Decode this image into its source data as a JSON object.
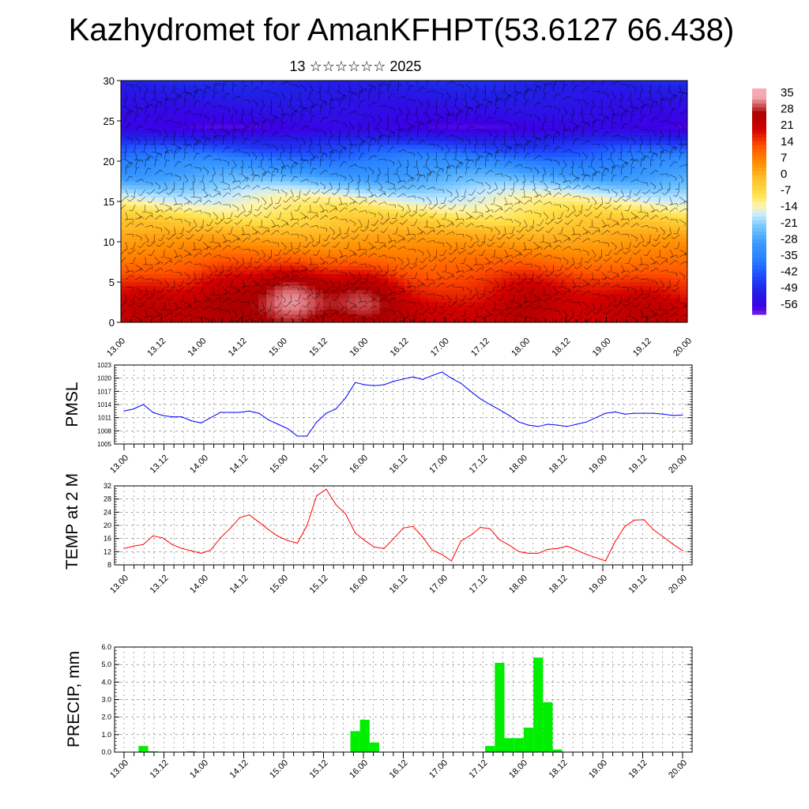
{
  "title": "Kazhydromet for AmanKFHPT(53.6127 66.438)",
  "subtitle": "13 ☆☆☆☆☆☆ 2025",
  "time_labels": [
    "13.00",
    "13.12",
    "14.00",
    "14.12",
    "15.00",
    "15.12",
    "16.00",
    "16.12",
    "17.00",
    "17.12",
    "18.00",
    "18.12",
    "19.00",
    "19.12",
    "20.00"
  ],
  "chart_data": [
    {
      "type": "heatmap",
      "title": "",
      "ylabel": "",
      "ylim": [
        0,
        30
      ],
      "yticks": [
        "0",
        "5",
        "10",
        "15",
        "20",
        "25",
        "30"
      ],
      "colorbar": {
        "labels": [
          "35",
          "28",
          "21",
          "14",
          "7",
          "0",
          "-7",
          "-14",
          "-21",
          "-28",
          "-35",
          "-42",
          "-49",
          "-56"
        ],
        "colors": {
          "hot": "#d40000",
          "warm": "#ff8a00",
          "mild": "#ffe14a",
          "cool": "#c8eaff",
          "cold": "#3b9cff",
          "frigid": "#2020e6",
          "top": "#8a2be2"
        }
      },
      "profile": [
        {
          "height": 0,
          "value": 22
        },
        {
          "height": 2,
          "value": 21
        },
        {
          "height": 5,
          "value": 16
        },
        {
          "height": 8,
          "value": 9
        },
        {
          "height": 11,
          "value": 2
        },
        {
          "height": 14,
          "value": -9
        },
        {
          "height": 16,
          "value": -16
        },
        {
          "height": 18,
          "value": -26
        },
        {
          "height": 20,
          "value": -34
        },
        {
          "height": 22,
          "value": -45
        },
        {
          "height": 24,
          "value": -56
        },
        {
          "height": 27,
          "value": -52
        },
        {
          "height": 30,
          "value": -48
        }
      ],
      "warm_cores": [
        {
          "t": 1.3,
          "h": 3.5,
          "dv": 8
        },
        {
          "t": 2.1,
          "h": 3.0,
          "dv": 14
        },
        {
          "t": 3.0,
          "h": 3.5,
          "dv": 10
        },
        {
          "t": 5.0,
          "h": 2.5,
          "dv": 6
        },
        {
          "t": 6.5,
          "h": 3.0,
          "dv": 3
        },
        {
          "t": 0.4,
          "h": 3.0,
          "dv": 3
        }
      ]
    },
    {
      "type": "line",
      "ylabel": "PMSL",
      "ylim": [
        1005,
        1023
      ],
      "yticks": [
        "1005",
        "1008",
        "1011",
        "1014",
        "1017",
        "1020",
        "1023"
      ],
      "color": "#0000ff",
      "values": [
        1012.5,
        1013.0,
        1014.0,
        1012.2,
        1011.5,
        1011.2,
        1011.2,
        1010.3,
        1009.8,
        1011.0,
        1012.2,
        1012.2,
        1012.2,
        1012.5,
        1012.0,
        1010.5,
        1009.5,
        1008.5,
        1006.8,
        1006.8,
        1010.0,
        1012.0,
        1013.0,
        1015.5,
        1019.0,
        1018.5,
        1018.3,
        1018.5,
        1019.3,
        1019.8,
        1020.3,
        1019.7,
        1020.6,
        1021.4,
        1020.0,
        1018.8,
        1017.0,
        1015.3,
        1014.0,
        1012.8,
        1011.5,
        1010.0,
        1009.3,
        1009.0,
        1009.5,
        1009.3,
        1009.0,
        1009.5,
        1010.0,
        1011.0,
        1012.0,
        1012.3,
        1011.8,
        1012.0,
        1012.0,
        1012.0,
        1011.8,
        1011.5,
        1011.6
      ]
    },
    {
      "type": "line",
      "ylabel": "TEMP at 2 M",
      "ylim": [
        8,
        32
      ],
      "yticks": [
        "8",
        "12",
        "16",
        "20",
        "24",
        "28",
        "32"
      ],
      "color": "#ff0000",
      "values": [
        13.0,
        13.7,
        14.2,
        16.8,
        16.2,
        14.2,
        13.0,
        12.3,
        11.5,
        12.5,
        16.2,
        19.0,
        22.3,
        23.2,
        21.0,
        18.7,
        16.7,
        15.4,
        14.6,
        20.0,
        29.0,
        31.0,
        26.3,
        23.5,
        17.7,
        15.4,
        13.4,
        13.0,
        16.0,
        19.2,
        19.7,
        16.5,
        12.5,
        11.2,
        9.2,
        15.3,
        17.0,
        19.4,
        19.0,
        15.6,
        14.0,
        12.0,
        11.5,
        11.5,
        12.7,
        13.0,
        13.7,
        12.5,
        11.2,
        10.2,
        9.2,
        15.1,
        19.7,
        21.6,
        21.7,
        18.6,
        16.5,
        14.3,
        12.3
      ]
    },
    {
      "type": "bar",
      "ylabel": "PRECIP, mm",
      "ylim": [
        0,
        6
      ],
      "yticks": [
        "0.0",
        "1.0",
        "2.0",
        "3.0",
        "4.0",
        "5.0",
        "6.0"
      ],
      "color": "#00ee00",
      "values": [
        0,
        0,
        0.35,
        0.05,
        0,
        0,
        0,
        0.05,
        0,
        0,
        0.03,
        0,
        0,
        0,
        0,
        0,
        0,
        0,
        0,
        0,
        0.05,
        0,
        0,
        0,
        1.2,
        1.85,
        0.55,
        0,
        0,
        0,
        0,
        0,
        0,
        0,
        0,
        0,
        0,
        0,
        0.35,
        5.1,
        0.8,
        0.8,
        1.4,
        5.4,
        2.85,
        0.15,
        0,
        0,
        0,
        0,
        0,
        0,
        0,
        0,
        0,
        0,
        0,
        0,
        0
      ]
    }
  ]
}
